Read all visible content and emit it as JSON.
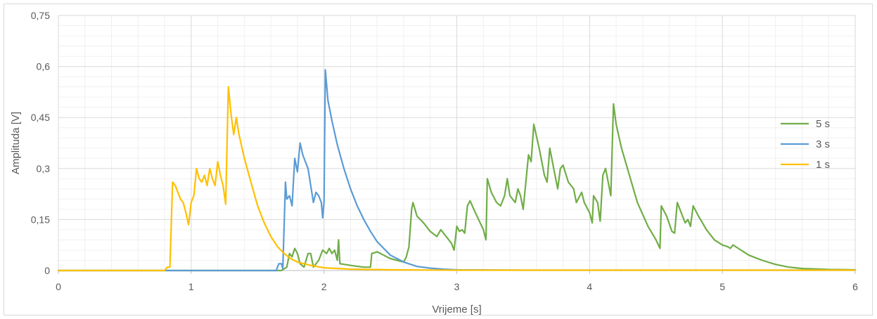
{
  "chart_data": {
    "type": "line",
    "title": "",
    "xlabel": "Vrijeme [s]",
    "ylabel": "Amplituda [V]",
    "xlim": [
      0,
      6
    ],
    "ylim": [
      0,
      0.75
    ],
    "x_ticks": [
      "0",
      "1",
      "2",
      "3",
      "4",
      "5",
      "6"
    ],
    "y_ticks": [
      "0",
      "0,15",
      "0,3",
      "0,45",
      "0,6",
      "0,75"
    ],
    "grid": true,
    "legend_position": "right",
    "series": [
      {
        "name": "5 s",
        "color": "#70ad47",
        "points": [
          [
            0,
            0
          ],
          [
            1.68,
            0
          ],
          [
            1.72,
            0.01
          ],
          [
            1.74,
            0.05
          ],
          [
            1.76,
            0.04
          ],
          [
            1.78,
            0.065
          ],
          [
            1.8,
            0.05
          ],
          [
            1.82,
            0.02
          ],
          [
            1.85,
            0.01
          ],
          [
            1.88,
            0.05
          ],
          [
            1.9,
            0.05
          ],
          [
            1.92,
            0.01
          ],
          [
            1.96,
            0.03
          ],
          [
            1.99,
            0.06
          ],
          [
            2.02,
            0.05
          ],
          [
            2.04,
            0.065
          ],
          [
            2.06,
            0.05
          ],
          [
            2.08,
            0.06
          ],
          [
            2.1,
            0.03
          ],
          [
            2.11,
            0.09
          ],
          [
            2.12,
            0.02
          ],
          [
            2.2,
            0.015
          ],
          [
            2.3,
            0.01
          ],
          [
            2.35,
            0.01
          ],
          [
            2.36,
            0.05
          ],
          [
            2.4,
            0.055
          ],
          [
            2.45,
            0.045
          ],
          [
            2.5,
            0.035
          ],
          [
            2.55,
            0.03
          ],
          [
            2.6,
            0.025
          ],
          [
            2.62,
            0.04
          ],
          [
            2.64,
            0.07
          ],
          [
            2.66,
            0.18
          ],
          [
            2.67,
            0.2
          ],
          [
            2.7,
            0.16
          ],
          [
            2.75,
            0.14
          ],
          [
            2.8,
            0.115
          ],
          [
            2.85,
            0.1
          ],
          [
            2.88,
            0.12
          ],
          [
            2.92,
            0.1
          ],
          [
            2.96,
            0.08
          ],
          [
            2.98,
            0.06
          ],
          [
            3.0,
            0.13
          ],
          [
            3.02,
            0.115
          ],
          [
            3.04,
            0.12
          ],
          [
            3.06,
            0.11
          ],
          [
            3.08,
            0.19
          ],
          [
            3.1,
            0.205
          ],
          [
            3.14,
            0.17
          ],
          [
            3.2,
            0.12
          ],
          [
            3.22,
            0.09
          ],
          [
            3.23,
            0.27
          ],
          [
            3.26,
            0.23
          ],
          [
            3.3,
            0.2
          ],
          [
            3.33,
            0.19
          ],
          [
            3.36,
            0.22
          ],
          [
            3.38,
            0.27
          ],
          [
            3.4,
            0.22
          ],
          [
            3.44,
            0.2
          ],
          [
            3.46,
            0.24
          ],
          [
            3.48,
            0.22
          ],
          [
            3.5,
            0.18
          ],
          [
            3.52,
            0.26
          ],
          [
            3.54,
            0.34
          ],
          [
            3.56,
            0.32
          ],
          [
            3.58,
            0.43
          ],
          [
            3.62,
            0.36
          ],
          [
            3.66,
            0.28
          ],
          [
            3.68,
            0.26
          ],
          [
            3.7,
            0.36
          ],
          [
            3.74,
            0.28
          ],
          [
            3.76,
            0.24
          ],
          [
            3.78,
            0.3
          ],
          [
            3.8,
            0.31
          ],
          [
            3.84,
            0.26
          ],
          [
            3.88,
            0.24
          ],
          [
            3.9,
            0.2
          ],
          [
            3.94,
            0.23
          ],
          [
            3.96,
            0.2
          ],
          [
            4.0,
            0.17
          ],
          [
            4.02,
            0.14
          ],
          [
            4.03,
            0.22
          ],
          [
            4.06,
            0.2
          ],
          [
            4.08,
            0.145
          ],
          [
            4.1,
            0.28
          ],
          [
            4.12,
            0.3
          ],
          [
            4.14,
            0.26
          ],
          [
            4.16,
            0.22
          ],
          [
            4.18,
            0.49
          ],
          [
            4.2,
            0.43
          ],
          [
            4.24,
            0.36
          ],
          [
            4.3,
            0.28
          ],
          [
            4.36,
            0.2
          ],
          [
            4.44,
            0.13
          ],
          [
            4.5,
            0.09
          ],
          [
            4.53,
            0.065
          ],
          [
            4.54,
            0.19
          ],
          [
            4.58,
            0.16
          ],
          [
            4.62,
            0.115
          ],
          [
            4.64,
            0.11
          ],
          [
            4.66,
            0.2
          ],
          [
            4.7,
            0.16
          ],
          [
            4.72,
            0.14
          ],
          [
            4.74,
            0.15
          ],
          [
            4.76,
            0.13
          ],
          [
            4.78,
            0.19
          ],
          [
            4.82,
            0.16
          ],
          [
            4.88,
            0.12
          ],
          [
            4.94,
            0.09
          ],
          [
            5.0,
            0.075
          ],
          [
            5.04,
            0.07
          ],
          [
            5.06,
            0.065
          ],
          [
            5.08,
            0.075
          ],
          [
            5.12,
            0.065
          ],
          [
            5.2,
            0.045
          ],
          [
            5.3,
            0.03
          ],
          [
            5.4,
            0.018
          ],
          [
            5.5,
            0.01
          ],
          [
            5.6,
            0.006
          ],
          [
            5.8,
            0.003
          ],
          [
            6.0,
            0.002
          ]
        ]
      },
      {
        "name": "3 s",
        "color": "#5b9bd5",
        "points": [
          [
            0,
            0
          ],
          [
            1.64,
            0
          ],
          [
            1.66,
            0.02
          ],
          [
            1.68,
            0.02
          ],
          [
            1.69,
            0.005
          ],
          [
            1.71,
            0.26
          ],
          [
            1.72,
            0.21
          ],
          [
            1.74,
            0.22
          ],
          [
            1.76,
            0.19
          ],
          [
            1.78,
            0.33
          ],
          [
            1.79,
            0.31
          ],
          [
            1.8,
            0.29
          ],
          [
            1.82,
            0.375
          ],
          [
            1.84,
            0.34
          ],
          [
            1.86,
            0.32
          ],
          [
            1.88,
            0.3
          ],
          [
            1.9,
            0.25
          ],
          [
            1.92,
            0.2
          ],
          [
            1.94,
            0.23
          ],
          [
            1.96,
            0.22
          ],
          [
            1.98,
            0.2
          ],
          [
            1.99,
            0.155
          ],
          [
            2.0,
            0.2
          ],
          [
            2.01,
            0.59
          ],
          [
            2.03,
            0.5
          ],
          [
            2.06,
            0.44
          ],
          [
            2.1,
            0.37
          ],
          [
            2.15,
            0.3
          ],
          [
            2.2,
            0.24
          ],
          [
            2.25,
            0.19
          ],
          [
            2.3,
            0.15
          ],
          [
            2.35,
            0.115
          ],
          [
            2.4,
            0.085
          ],
          [
            2.45,
            0.065
          ],
          [
            2.5,
            0.045
          ],
          [
            2.6,
            0.025
          ],
          [
            2.7,
            0.012
          ],
          [
            2.8,
            0.007
          ],
          [
            2.9,
            0.004
          ],
          [
            3.0,
            0.002
          ],
          [
            3.5,
            0.001
          ],
          [
            6.0,
            0.001
          ]
        ]
      },
      {
        "name": "1 s",
        "color": "#ffc000",
        "points": [
          [
            0,
            0
          ],
          [
            0.8,
            0
          ],
          [
            0.82,
            0.01
          ],
          [
            0.84,
            0.01
          ],
          [
            0.86,
            0.26
          ],
          [
            0.88,
            0.25
          ],
          [
            0.9,
            0.23
          ],
          [
            0.92,
            0.21
          ],
          [
            0.94,
            0.2
          ],
          [
            0.96,
            0.17
          ],
          [
            0.98,
            0.135
          ],
          [
            1.0,
            0.2
          ],
          [
            1.02,
            0.22
          ],
          [
            1.04,
            0.3
          ],
          [
            1.06,
            0.27
          ],
          [
            1.08,
            0.26
          ],
          [
            1.1,
            0.28
          ],
          [
            1.12,
            0.25
          ],
          [
            1.14,
            0.3
          ],
          [
            1.16,
            0.27
          ],
          [
            1.18,
            0.25
          ],
          [
            1.2,
            0.32
          ],
          [
            1.22,
            0.28
          ],
          [
            1.24,
            0.25
          ],
          [
            1.26,
            0.195
          ],
          [
            1.28,
            0.54
          ],
          [
            1.3,
            0.46
          ],
          [
            1.32,
            0.4
          ],
          [
            1.34,
            0.45
          ],
          [
            1.36,
            0.4
          ],
          [
            1.4,
            0.33
          ],
          [
            1.45,
            0.26
          ],
          [
            1.5,
            0.19
          ],
          [
            1.55,
            0.14
          ],
          [
            1.6,
            0.1
          ],
          [
            1.65,
            0.07
          ],
          [
            1.7,
            0.05
          ],
          [
            1.75,
            0.035
          ],
          [
            1.8,
            0.025
          ],
          [
            1.9,
            0.015
          ],
          [
            2.0,
            0.008
          ],
          [
            2.2,
            0.004
          ],
          [
            2.5,
            0.002
          ],
          [
            3.0,
            0.001
          ],
          [
            6.0,
            0.001
          ]
        ]
      }
    ]
  }
}
